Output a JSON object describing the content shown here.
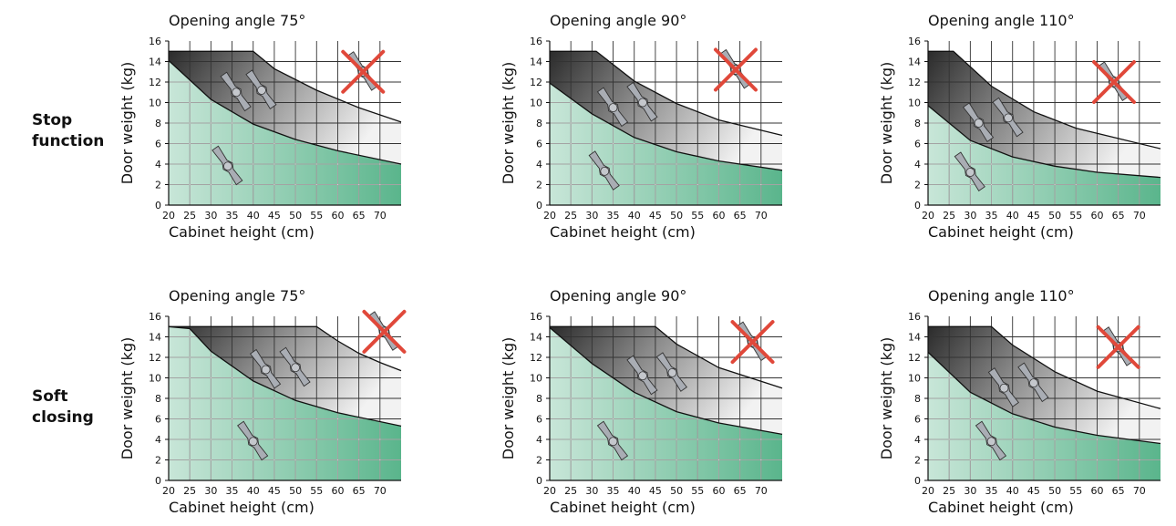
{
  "row_labels": [
    [
      "Stop",
      "function"
    ],
    [
      "Soft",
      "closing"
    ]
  ],
  "colors": {
    "green_light": "#c8e6d8",
    "green_dark": "#5ab58c",
    "grey_light": "#f2f2f2",
    "grey_dark": "#2b2b2b",
    "cross": "#e0483a",
    "hinge": "#a9adb4",
    "grid": "#111111"
  },
  "chart_data": [
    {
      "type": "area",
      "title": "Opening angle 75°",
      "xlabel": "Cabinet height (cm)",
      "ylabel": "Door weight (kg)",
      "xlim": [
        20,
        75
      ],
      "ylim": [
        0,
        16
      ],
      "xticks": [
        20,
        25,
        30,
        35,
        40,
        45,
        50,
        55,
        60,
        65,
        70
      ],
      "yticks": [
        0,
        2,
        4,
        6,
        8,
        10,
        12,
        14,
        16
      ],
      "upper_limit": {
        "x": [
          20,
          40,
          45,
          55,
          65,
          75
        ],
        "y": [
          15,
          15,
          13.3,
          11.2,
          9.5,
          8.1
        ]
      },
      "lower_limit": {
        "x": [
          20,
          30,
          40,
          50,
          60,
          75
        ],
        "y": [
          14.1,
          10.3,
          7.9,
          6.4,
          5.3,
          4.0
        ]
      },
      "hinges": [
        {
          "x": 36,
          "y": 11
        },
        {
          "x": 42,
          "y": 11.2
        },
        {
          "x": 34,
          "y": 3.8
        }
      ],
      "cross": {
        "x": 66,
        "y": 13
      }
    },
    {
      "type": "area",
      "title": "Opening angle 90°",
      "xlabel": "Cabinet height (cm)",
      "ylabel": "Door weight (kg)",
      "xlim": [
        20,
        75
      ],
      "ylim": [
        0,
        16
      ],
      "xticks": [
        20,
        25,
        30,
        35,
        40,
        45,
        50,
        55,
        60,
        65,
        70
      ],
      "yticks": [
        0,
        2,
        4,
        6,
        8,
        10,
        12,
        14,
        16
      ],
      "upper_limit": {
        "x": [
          20,
          31,
          40,
          50,
          60,
          75
        ],
        "y": [
          15,
          15,
          12.1,
          9.9,
          8.3,
          6.8
        ]
      },
      "lower_limit": {
        "x": [
          20,
          30,
          40,
          50,
          60,
          75
        ],
        "y": [
          11.9,
          8.9,
          6.6,
          5.2,
          4.3,
          3.4
        ]
      },
      "hinges": [
        {
          "x": 35,
          "y": 9.5
        },
        {
          "x": 42,
          "y": 10
        },
        {
          "x": 33,
          "y": 3.3
        }
      ],
      "cross": {
        "x": 64,
        "y": 13.2
      }
    },
    {
      "type": "area",
      "title": "Opening angle 110°",
      "xlabel": "Cabinet height (cm)",
      "ylabel": "Door weight (kg)",
      "xlim": [
        20,
        75
      ],
      "ylim": [
        0,
        16
      ],
      "xticks": [
        20,
        25,
        30,
        35,
        40,
        45,
        50,
        55,
        60,
        65,
        70
      ],
      "yticks": [
        0,
        2,
        4,
        6,
        8,
        10,
        12,
        14,
        16
      ],
      "upper_limit": {
        "x": [
          20,
          26,
          35,
          45,
          55,
          75
        ],
        "y": [
          15,
          15,
          11.6,
          9.1,
          7.5,
          5.5
        ]
      },
      "lower_limit": {
        "x": [
          20,
          30,
          40,
          50,
          60,
          75
        ],
        "y": [
          9.7,
          6.3,
          4.7,
          3.8,
          3.2,
          2.7
        ]
      },
      "hinges": [
        {
          "x": 32,
          "y": 8
        },
        {
          "x": 39,
          "y": 8.5
        },
        {
          "x": 30,
          "y": 3.2
        }
      ],
      "cross": {
        "x": 64,
        "y": 12
      }
    },
    {
      "type": "area",
      "title": "Opening angle 75°",
      "xlabel": "Cabinet height (cm)",
      "ylabel": "Door weight (kg)",
      "xlim": [
        20,
        75
      ],
      "ylim": [
        0,
        16
      ],
      "xticks": [
        20,
        25,
        30,
        35,
        40,
        45,
        50,
        55,
        60,
        65,
        70
      ],
      "yticks": [
        0,
        2,
        4,
        6,
        8,
        10,
        12,
        14,
        16
      ],
      "upper_limit": {
        "x": [
          20,
          55,
          60,
          65,
          70,
          75
        ],
        "y": [
          15,
          15,
          13.6,
          12.4,
          11.5,
          10.7
        ]
      },
      "lower_limit": {
        "x": [
          20,
          25,
          30,
          40,
          50,
          60,
          75
        ],
        "y": [
          15,
          14.8,
          12.6,
          9.7,
          7.8,
          6.6,
          5.3
        ]
      },
      "hinges": [
        {
          "x": 43,
          "y": 10.8
        },
        {
          "x": 50,
          "y": 11
        },
        {
          "x": 40,
          "y": 3.8
        }
      ],
      "cross": {
        "x": 71,
        "y": 14.5
      }
    },
    {
      "type": "area",
      "title": "Opening angle 90°",
      "xlabel": "Cabinet height (cm)",
      "ylabel": "Door weight (kg)",
      "xlim": [
        20,
        75
      ],
      "ylim": [
        0,
        16
      ],
      "xticks": [
        20,
        25,
        30,
        35,
        40,
        45,
        50,
        55,
        60,
        65,
        70
      ],
      "yticks": [
        0,
        2,
        4,
        6,
        8,
        10,
        12,
        14,
        16
      ],
      "upper_limit": {
        "x": [
          20,
          45,
          50,
          60,
          75
        ],
        "y": [
          15,
          15,
          13.3,
          11,
          9
        ]
      },
      "lower_limit": {
        "x": [
          20,
          30,
          40,
          50,
          60,
          75
        ],
        "y": [
          14.9,
          11.4,
          8.6,
          6.7,
          5.6,
          4.5
        ]
      },
      "hinges": [
        {
          "x": 42,
          "y": 10.2
        },
        {
          "x": 49,
          "y": 10.5
        },
        {
          "x": 35,
          "y": 3.8
        }
      ],
      "cross": {
        "x": 68,
        "y": 13.5
      }
    },
    {
      "type": "area",
      "title": "Opening angle 110°",
      "xlabel": "Cabinet height (cm)",
      "ylabel": "Door weight (kg)",
      "xlim": [
        20,
        75
      ],
      "ylim": [
        0,
        16
      ],
      "xticks": [
        20,
        25,
        30,
        35,
        40,
        45,
        50,
        55,
        60,
        65,
        70
      ],
      "yticks": [
        0,
        2,
        4,
        6,
        8,
        10,
        12,
        14,
        16
      ],
      "upper_limit": {
        "x": [
          20,
          35,
          40,
          50,
          60,
          75
        ],
        "y": [
          15,
          15,
          13.2,
          10.6,
          8.7,
          7.0
        ]
      },
      "lower_limit": {
        "x": [
          20,
          30,
          40,
          50,
          60,
          75
        ],
        "y": [
          12.5,
          8.6,
          6.5,
          5.2,
          4.4,
          3.6
        ]
      },
      "hinges": [
        {
          "x": 38,
          "y": 9
        },
        {
          "x": 45,
          "y": 9.5
        },
        {
          "x": 35,
          "y": 3.8
        }
      ],
      "cross": {
        "x": 65,
        "y": 13
      }
    }
  ]
}
